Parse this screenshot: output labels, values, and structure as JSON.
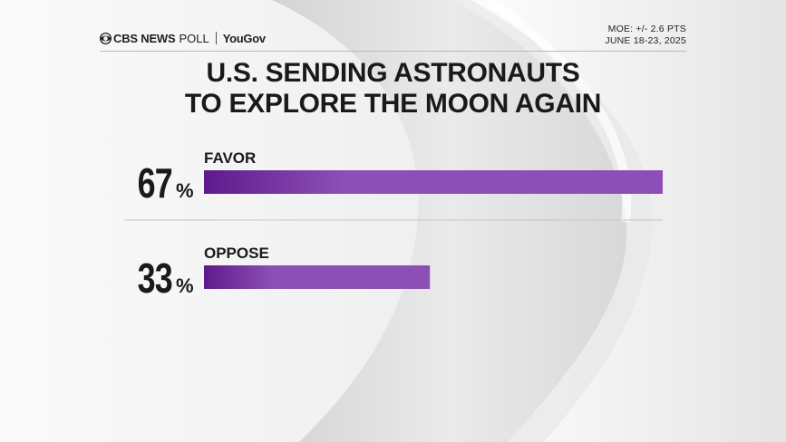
{
  "header": {
    "brand_cbs": "CBS NEWS",
    "brand_poll": "POLL",
    "brand_yougov": "YouGov",
    "moe": "MOE: +/- 2.6 PTS",
    "dates": "JUNE 18-23, 2025"
  },
  "colors": {
    "bar_start": "#5e1a8c",
    "bar_end": "#8c4fb5",
    "text": "#1a1a1a"
  },
  "chart_data": {
    "type": "bar",
    "orientation": "horizontal",
    "title_lines": [
      "U.S. SENDING ASTRONAUTS",
      "TO EXPLORE THE MOON AGAIN"
    ],
    "categories": [
      "FAVOR",
      "OPPOSE"
    ],
    "values": [
      67,
      33
    ],
    "value_labels": [
      "67",
      "33"
    ],
    "unit": "%",
    "xlim": [
      0,
      67
    ],
    "grid": false,
    "legend": "none"
  }
}
